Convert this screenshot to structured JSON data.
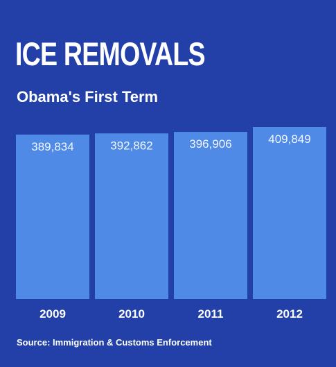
{
  "chart_data": {
    "type": "bar",
    "title": "ICE REMOVALS",
    "subtitle": "Obama's First Term",
    "categories": [
      "2009",
      "2010",
      "2011",
      "2012"
    ],
    "values": [
      389834,
      392862,
      396906,
      409849
    ],
    "value_labels": [
      "389,834",
      "392,862",
      "396,906",
      "409,849"
    ],
    "xlabel": "",
    "ylabel": "",
    "grid": false,
    "source": "Source: Immigration & Customs Enforcement",
    "colors": {
      "background": "#2240a8",
      "bar": "#4f8ae6",
      "text": "#ffffff"
    }
  }
}
